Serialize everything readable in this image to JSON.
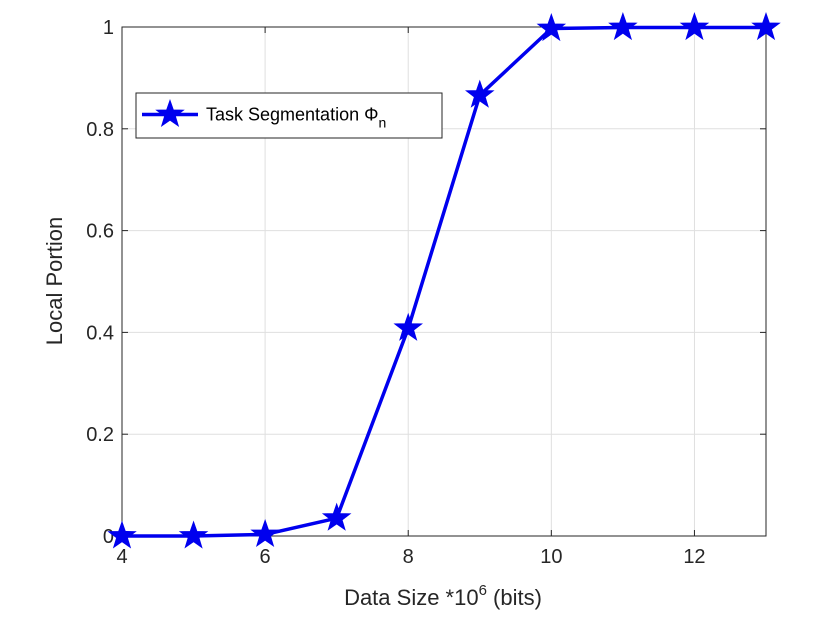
{
  "chart_data": {
    "type": "line",
    "xlabel": {
      "main": "Data Size *10",
      "sup": "6",
      "tail": " (bits)"
    },
    "ylabel": "Local Portion",
    "xlim": [
      4,
      13
    ],
    "ylim": [
      0,
      1
    ],
    "xticks": [
      4,
      6,
      8,
      10,
      12
    ],
    "xtick_labels": [
      "4",
      "6",
      "8",
      "10",
      "12"
    ],
    "yticks": [
      0,
      0.2,
      0.4,
      0.6,
      0.8,
      1
    ],
    "ytick_labels": [
      "0",
      "0.2",
      "0.4",
      "0.6",
      "0.8",
      "1"
    ],
    "grid": true,
    "legend": {
      "placement": "top-left",
      "main": "Task Segmentation Φ",
      "sub": "n"
    },
    "series": [
      {
        "name": "Task Segmentation Φn",
        "color": "#0000ee",
        "marker": "star",
        "x": [
          4,
          5,
          6,
          7,
          8,
          9,
          10,
          11,
          12,
          13
        ],
        "y": [
          0.0,
          0.0,
          0.003,
          0.035,
          0.408,
          0.866,
          0.997,
          0.999,
          0.999,
          0.999
        ]
      }
    ]
  }
}
